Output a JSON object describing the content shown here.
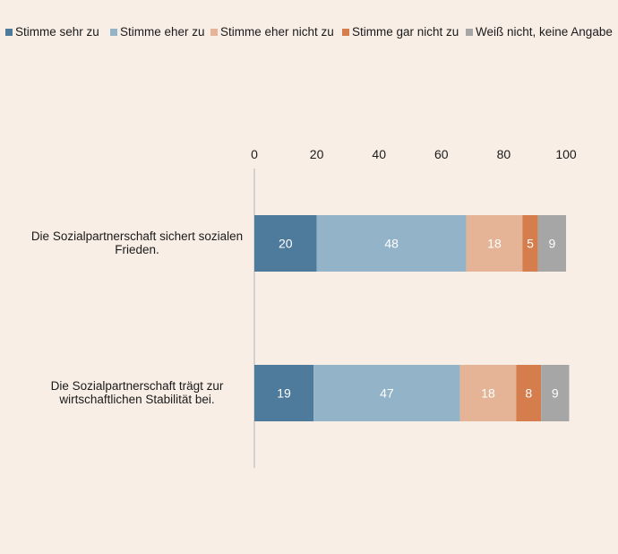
{
  "chart_data": {
    "type": "bar",
    "orientation": "horizontal",
    "stacked": true,
    "title": "",
    "xlabel": "",
    "ylabel": "",
    "xlim": [
      0,
      100
    ],
    "x_ticks": [
      0,
      20,
      40,
      60,
      80,
      100
    ],
    "x_axis_position": "top",
    "grid": false,
    "legend_position": "top",
    "categories": [
      [
        "Die Sozialpartnerschaft sichert sozialen",
        "Frieden."
      ],
      [
        "Die Sozialpartnerschaft trägt zur",
        "wirtschaftlichen Stabilität bei."
      ]
    ],
    "series": [
      {
        "name": "Stimme sehr zu",
        "color": "#4e7a9c",
        "values": [
          20,
          19
        ]
      },
      {
        "name": "Stimme eher zu",
        "color": "#93b3c8",
        "values": [
          48,
          47
        ]
      },
      {
        "name": "Stimme eher nicht zu",
        "color": "#e5b497",
        "values": [
          18,
          18
        ]
      },
      {
        "name": "Stimme gar nicht zu",
        "color": "#d57d4c",
        "values": [
          5,
          8
        ]
      },
      {
        "name": "Weiß nicht, keine Angabe",
        "color": "#a6a6a6",
        "values": [
          9,
          9
        ]
      }
    ]
  }
}
